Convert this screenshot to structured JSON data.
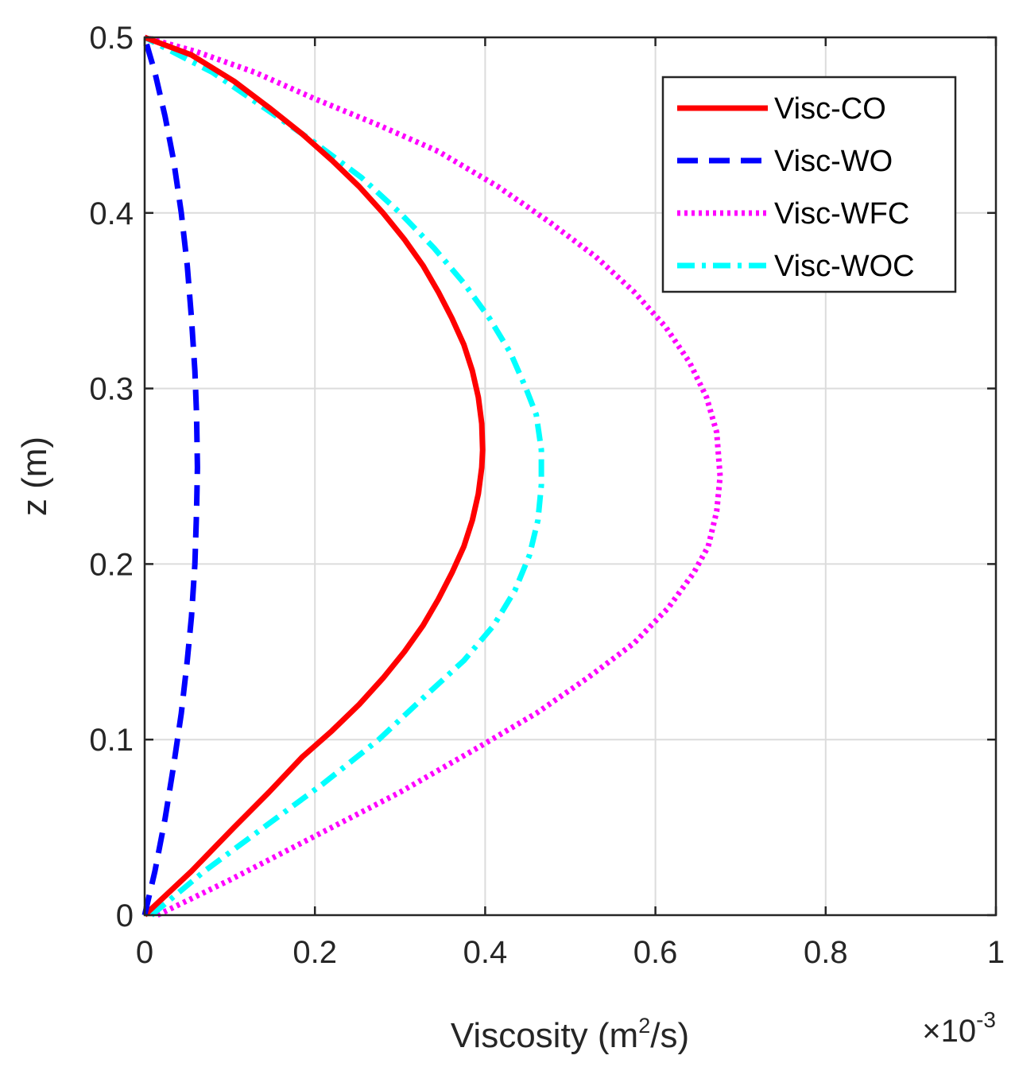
{
  "chart_data": {
    "type": "line",
    "title": "",
    "xlabel_prefix": "Viscosity (m",
    "xlabel_sup": "2",
    "xlabel_suffix": "/s)",
    "ylabel": "z (m)",
    "x_multiplier_base": "×10",
    "x_multiplier_exp": "-3",
    "xlim": [
      0,
      1
    ],
    "ylim": [
      0,
      0.5
    ],
    "xticks": [
      0,
      0.2,
      0.4,
      0.6,
      0.8,
      1
    ],
    "xtick_labels": [
      "0",
      "0.2",
      "0.4",
      "0.6",
      "0.8",
      "1"
    ],
    "yticks": [
      0,
      0.1,
      0.2,
      0.3,
      0.4,
      0.5
    ],
    "ytick_labels": [
      "0",
      "0.1",
      "0.2",
      "0.3",
      "0.4",
      "0.5"
    ],
    "grid": true,
    "legend_position": "top-right",
    "series": [
      {
        "name": "Visc-CO",
        "color": "#ff0000",
        "style": "solid",
        "x": [
          0.0,
          0.055,
          0.105,
          0.146,
          0.185,
          0.22,
          0.252,
          0.28,
          0.305,
          0.327,
          0.345,
          0.361,
          0.375,
          0.385,
          0.392,
          0.396,
          0.397,
          0.396,
          0.392,
          0.385,
          0.375,
          0.361,
          0.345,
          0.327,
          0.305,
          0.28,
          0.252,
          0.22,
          0.185,
          0.146,
          0.105,
          0.055,
          0.0
        ],
        "y": [
          0.0,
          0.025,
          0.05,
          0.07,
          0.09,
          0.105,
          0.12,
          0.135,
          0.15,
          0.165,
          0.18,
          0.195,
          0.21,
          0.225,
          0.24,
          0.255,
          0.265,
          0.28,
          0.295,
          0.31,
          0.325,
          0.34,
          0.355,
          0.37,
          0.385,
          0.4,
          0.415,
          0.43,
          0.445,
          0.46,
          0.475,
          0.49,
          0.5
        ]
      },
      {
        "name": "Visc-WO",
        "color": "#0000ff",
        "style": "dashed",
        "x": [
          0.0,
          0.012,
          0.024,
          0.034,
          0.043,
          0.05,
          0.055,
          0.059,
          0.061,
          0.062,
          0.061,
          0.059,
          0.055,
          0.05,
          0.043,
          0.034,
          0.024,
          0.012,
          0.0
        ],
        "y": [
          0.0,
          0.025,
          0.055,
          0.085,
          0.115,
          0.145,
          0.17,
          0.2,
          0.23,
          0.255,
          0.285,
          0.31,
          0.34,
          0.37,
          0.4,
          0.43,
          0.455,
          0.48,
          0.5
        ]
      },
      {
        "name": "Visc-WFC",
        "color": "#ff00ff",
        "style": "dotted",
        "x": [
          0.015,
          0.1,
          0.2,
          0.3,
          0.39,
          0.46,
          0.52,
          0.575,
          0.615,
          0.645,
          0.662,
          0.672,
          0.676,
          0.672,
          0.66,
          0.64,
          0.612,
          0.575,
          0.53,
          0.475,
          0.415,
          0.345,
          0.275,
          0.2,
          0.13,
          0.06,
          0.0
        ],
        "y": [
          0.0,
          0.02,
          0.045,
          0.07,
          0.095,
          0.115,
          0.135,
          0.155,
          0.175,
          0.195,
          0.21,
          0.23,
          0.25,
          0.275,
          0.295,
          0.315,
          0.335,
          0.355,
          0.375,
          0.395,
          0.415,
          0.435,
          0.45,
          0.465,
          0.48,
          0.492,
          0.5
        ]
      },
      {
        "name": "Visc-WOC",
        "color": "#00ffff",
        "style": "dashdot",
        "x": [
          0.008,
          0.07,
          0.14,
          0.21,
          0.275,
          0.33,
          0.375,
          0.41,
          0.435,
          0.452,
          0.462,
          0.466,
          0.466,
          0.46,
          0.448,
          0.43,
          0.405,
          0.375,
          0.34,
          0.3,
          0.255,
          0.2,
          0.14,
          0.08,
          0.0
        ],
        "y": [
          0.0,
          0.025,
          0.05,
          0.075,
          0.1,
          0.125,
          0.145,
          0.165,
          0.185,
          0.205,
          0.225,
          0.245,
          0.265,
          0.285,
          0.3,
          0.32,
          0.34,
          0.36,
          0.38,
          0.4,
          0.42,
          0.44,
          0.46,
          0.48,
          0.5
        ]
      }
    ]
  }
}
